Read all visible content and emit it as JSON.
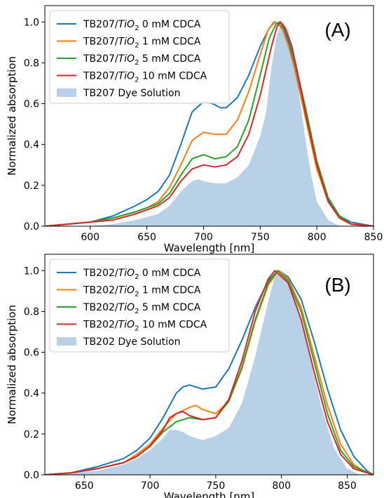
{
  "chart_data": [
    {
      "type": "line",
      "tag": "(A)",
      "xlabel": "Wavelength [nm]",
      "ylabel": "Normalized absorption",
      "xlim": [
        560,
        850
      ],
      "ylim": [
        0,
        1.08
      ],
      "xticks": [
        600,
        650,
        700,
        750,
        800,
        850
      ],
      "yticks": [
        0.0,
        0.2,
        0.4,
        0.6,
        0.8,
        1.0
      ],
      "legend_position": "top-left",
      "grid": false,
      "series": [
        {
          "name_main": "TB207/",
          "name_italic": "TiO",
          "name_sub": "2",
          "name_tail": " 0 mM CDCA",
          "color": "#1f77b4",
          "x": [
            560,
            580,
            600,
            620,
            640,
            650,
            660,
            670,
            680,
            690,
            700,
            708,
            715,
            720,
            730,
            740,
            750,
            758,
            763,
            766,
            770,
            775,
            780,
            790,
            800,
            810,
            820,
            830,
            840,
            850
          ],
          "y": [
            0.0,
            0.01,
            0.02,
            0.05,
            0.1,
            0.13,
            0.17,
            0.25,
            0.4,
            0.56,
            0.61,
            0.6,
            0.58,
            0.58,
            0.63,
            0.74,
            0.88,
            0.97,
            1.0,
            0.99,
            0.97,
            0.9,
            0.8,
            0.55,
            0.3,
            0.13,
            0.05,
            0.02,
            0.01,
            0.0
          ]
        },
        {
          "name_main": "TB207/",
          "name_italic": "TiO",
          "name_sub": "2",
          "name_tail": " 1 mM CDCA",
          "color": "#ff7f0e",
          "x": [
            560,
            580,
            600,
            620,
            640,
            650,
            660,
            670,
            680,
            690,
            700,
            710,
            720,
            730,
            740,
            750,
            757,
            762,
            766,
            770,
            775,
            780,
            790,
            800,
            810,
            820,
            830,
            850
          ],
          "y": [
            0.0,
            0.01,
            0.02,
            0.04,
            0.07,
            0.09,
            0.12,
            0.19,
            0.3,
            0.42,
            0.46,
            0.45,
            0.45,
            0.52,
            0.66,
            0.84,
            0.96,
            1.0,
            0.99,
            0.96,
            0.88,
            0.78,
            0.53,
            0.28,
            0.12,
            0.04,
            0.01,
            0.0
          ]
        },
        {
          "name_main": "TB207/",
          "name_italic": "TiO",
          "name_sub": "2",
          "name_tail": " 5 mM CDCA",
          "color": "#2ca02c",
          "x": [
            560,
            580,
            600,
            620,
            640,
            650,
            660,
            670,
            680,
            690,
            700,
            710,
            720,
            730,
            740,
            750,
            758,
            764,
            767,
            770,
            775,
            780,
            790,
            800,
            810,
            820,
            830,
            850
          ],
          "y": [
            0.0,
            0.01,
            0.02,
            0.04,
            0.07,
            0.09,
            0.11,
            0.16,
            0.25,
            0.33,
            0.35,
            0.33,
            0.34,
            0.39,
            0.52,
            0.74,
            0.92,
            0.99,
            1.0,
            0.98,
            0.92,
            0.82,
            0.58,
            0.32,
            0.14,
            0.05,
            0.01,
            0.0
          ]
        },
        {
          "name_main": "TB207/",
          "name_italic": "TiO",
          "name_sub": "2",
          "name_tail": " 10 mM CDCA",
          "color": "#d62728",
          "x": [
            560,
            580,
            600,
            620,
            640,
            650,
            660,
            670,
            680,
            690,
            700,
            710,
            720,
            730,
            740,
            750,
            760,
            765,
            768,
            772,
            778,
            785,
            790,
            800,
            810,
            820,
            830,
            850
          ],
          "y": [
            0.0,
            0.01,
            0.02,
            0.03,
            0.06,
            0.08,
            0.1,
            0.14,
            0.22,
            0.28,
            0.3,
            0.29,
            0.3,
            0.34,
            0.45,
            0.64,
            0.88,
            0.98,
            1.0,
            0.97,
            0.88,
            0.7,
            0.55,
            0.3,
            0.12,
            0.04,
            0.01,
            0.0
          ]
        },
        {
          "name": "TB207 Dye Solution",
          "color": "#b9d1e6",
          "fill": true,
          "x": [
            560,
            600,
            620,
            640,
            660,
            670,
            680,
            690,
            695,
            700,
            710,
            720,
            730,
            740,
            750,
            755,
            760,
            765,
            770,
            775,
            780,
            785,
            790,
            795,
            800,
            810,
            820,
            850
          ],
          "y": [
            0.0,
            0.0,
            0.01,
            0.03,
            0.06,
            0.1,
            0.17,
            0.22,
            0.23,
            0.22,
            0.21,
            0.21,
            0.24,
            0.3,
            0.44,
            0.55,
            0.78,
            0.94,
            1.0,
            0.96,
            0.82,
            0.62,
            0.42,
            0.25,
            0.12,
            0.03,
            0.0,
            0.0
          ]
        }
      ]
    },
    {
      "type": "line",
      "tag": "(B)",
      "xlabel": "Wavelength [nm]",
      "ylabel": "Normalized absorption",
      "xlim": [
        620,
        870
      ],
      "ylim": [
        0,
        1.08
      ],
      "xticks": [
        650,
        700,
        750,
        800,
        850
      ],
      "yticks": [
        0.0,
        0.2,
        0.4,
        0.6,
        0.8,
        1.0
      ],
      "legend_position": "top-left",
      "grid": false,
      "series": [
        {
          "name_main": "TB202/",
          "name_italic": "TiO",
          "name_sub": "2",
          "name_tail": " 0 mM CDCA",
          "color": "#1f77b4",
          "x": [
            620,
            640,
            660,
            680,
            690,
            700,
            710,
            720,
            725,
            730,
            740,
            750,
            760,
            770,
            780,
            790,
            797,
            805,
            815,
            825,
            835,
            845,
            855,
            865,
            870
          ],
          "y": [
            0.0,
            0.01,
            0.04,
            0.08,
            0.12,
            0.18,
            0.28,
            0.4,
            0.43,
            0.44,
            0.42,
            0.43,
            0.52,
            0.66,
            0.82,
            0.95,
            1.0,
            0.97,
            0.86,
            0.65,
            0.42,
            0.22,
            0.09,
            0.02,
            0.0
          ]
        },
        {
          "name_main": "TB202/",
          "name_italic": "TiO",
          "name_sub": "2",
          "name_tail": " 1 mM CDCA",
          "color": "#ff7f0e",
          "x": [
            620,
            640,
            660,
            680,
            690,
            700,
            710,
            720,
            730,
            735,
            740,
            750,
            760,
            770,
            780,
            790,
            798,
            805,
            815,
            825,
            835,
            845,
            855,
            865,
            870
          ],
          "y": [
            0.0,
            0.01,
            0.03,
            0.06,
            0.1,
            0.15,
            0.23,
            0.3,
            0.33,
            0.34,
            0.32,
            0.3,
            0.36,
            0.52,
            0.75,
            0.93,
            1.0,
            0.96,
            0.82,
            0.58,
            0.34,
            0.15,
            0.05,
            0.01,
            0.0
          ]
        },
        {
          "name_main": "TB202/",
          "name_italic": "TiO",
          "name_sub": "2",
          "name_tail": " 5 mM CDCA",
          "color": "#2ca02c",
          "x": [
            620,
            640,
            660,
            680,
            690,
            700,
            710,
            720,
            730,
            740,
            750,
            760,
            770,
            780,
            790,
            797,
            805,
            815,
            825,
            835,
            845,
            855,
            870
          ],
          "y": [
            0.0,
            0.01,
            0.03,
            0.06,
            0.09,
            0.14,
            0.21,
            0.26,
            0.28,
            0.27,
            0.28,
            0.36,
            0.53,
            0.76,
            0.94,
            1.0,
            0.95,
            0.8,
            0.55,
            0.3,
            0.12,
            0.04,
            0.0
          ]
        },
        {
          "name_main": "TB202/",
          "name_italic": "TiO",
          "name_sub": "2",
          "name_tail": " 10 mM CDCA",
          "color": "#d62728",
          "x": [
            620,
            640,
            660,
            680,
            690,
            700,
            710,
            715,
            720,
            725,
            730,
            740,
            750,
            760,
            770,
            780,
            790,
            795,
            805,
            815,
            825,
            835,
            845,
            855,
            870
          ],
          "y": [
            0.0,
            0.01,
            0.03,
            0.06,
            0.09,
            0.14,
            0.22,
            0.28,
            0.3,
            0.31,
            0.29,
            0.27,
            0.28,
            0.37,
            0.56,
            0.8,
            0.96,
            1.0,
            0.94,
            0.76,
            0.5,
            0.26,
            0.1,
            0.03,
            0.0
          ]
        },
        {
          "name": "TB202 Dye Solution",
          "color": "#b9d1e6",
          "fill": true,
          "x": [
            620,
            660,
            680,
            690,
            700,
            710,
            715,
            720,
            725,
            730,
            740,
            750,
            760,
            770,
            780,
            790,
            795,
            800,
            805,
            810,
            815,
            820,
            830,
            840,
            850,
            860,
            870
          ],
          "y": [
            0.0,
            0.02,
            0.05,
            0.08,
            0.12,
            0.18,
            0.22,
            0.22,
            0.21,
            0.19,
            0.17,
            0.19,
            0.23,
            0.35,
            0.58,
            0.85,
            0.97,
            1.0,
            0.97,
            0.88,
            0.76,
            0.62,
            0.34,
            0.13,
            0.03,
            0.0,
            0.0
          ]
        }
      ]
    }
  ]
}
